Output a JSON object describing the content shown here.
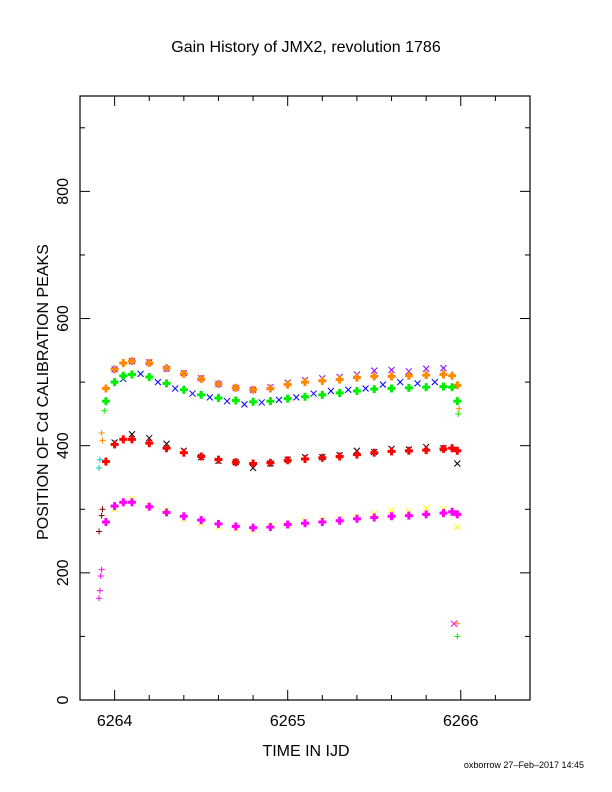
{
  "chart_data": {
    "type": "scatter",
    "title": "Gain History of JMX2, revolution 1786",
    "xlabel": "TIME IN IJD",
    "ylabel": "POSITION OF Cd CALIBRATION PEAKS",
    "xlim": [
      6263.8,
      6266.4
    ],
    "ylim": [
      0,
      950
    ],
    "x_ticks": [
      6264,
      6265,
      6266
    ],
    "x_tick_labels": [
      "6264",
      "6265",
      "6266"
    ],
    "y_ticks": [
      0,
      200,
      400,
      600,
      800
    ],
    "y_tick_labels": [
      "0",
      "200",
      "400",
      "600",
      "800"
    ],
    "grid": false,
    "footer": "oxborrow 27–Feb–2017 14:45",
    "series": [
      {
        "color": "#8800ff",
        "marker": "x",
        "role": "raw",
        "x": [
          6264.0,
          6264.1,
          6264.2,
          6264.3,
          6264.4,
          6264.5,
          6264.6,
          6264.7,
          6264.8,
          6264.9,
          6265.0,
          6265.1,
          6265.2,
          6265.3,
          6265.4,
          6265.5,
          6265.6,
          6265.7,
          6265.8,
          6265.9
        ],
        "y": [
          520,
          533,
          531,
          521,
          514,
          506,
          497,
          491,
          488,
          492,
          499,
          503,
          506,
          508,
          512,
          518,
          519,
          517,
          521,
          522
        ]
      },
      {
        "color": "#0000ff",
        "marker": "x",
        "role": "raw",
        "x": [
          6264.05,
          6264.15,
          6264.25,
          6264.35,
          6264.45,
          6264.55,
          6264.65,
          6264.75,
          6264.85,
          6264.95,
          6265.05,
          6265.15,
          6265.25,
          6265.35,
          6265.45,
          6265.55,
          6265.65,
          6265.75,
          6265.85
        ],
        "y": [
          505,
          513,
          500,
          490,
          482,
          476,
          470,
          465,
          468,
          472,
          476,
          482,
          486,
          488,
          490,
          496,
          500,
          498,
          500
        ]
      },
      {
        "color": "#ff8800",
        "marker": "+",
        "role": "fit",
        "x": [
          6263.95,
          6264.0,
          6264.05,
          6264.1,
          6264.2,
          6264.3,
          6264.4,
          6264.5,
          6264.6,
          6264.7,
          6264.8,
          6264.9,
          6265.0,
          6265.1,
          6265.2,
          6265.3,
          6265.4,
          6265.5,
          6265.6,
          6265.7,
          6265.8,
          6265.9,
          6265.95,
          6265.98
        ],
        "y": [
          490,
          520,
          530,
          533,
          530,
          522,
          513,
          505,
          497,
          491,
          488,
          490,
          496,
          500,
          502,
          504,
          507,
          509,
          509,
          510,
          511,
          512,
          510,
          495
        ]
      },
      {
        "color": "#00ee00",
        "marker": "+",
        "role": "fit",
        "x": [
          6263.95,
          6264.0,
          6264.05,
          6264.1,
          6264.2,
          6264.3,
          6264.4,
          6264.5,
          6264.6,
          6264.7,
          6264.8,
          6264.9,
          6265.0,
          6265.1,
          6265.2,
          6265.3,
          6265.4,
          6265.5,
          6265.6,
          6265.7,
          6265.8,
          6265.9,
          6265.95,
          6265.98
        ],
        "y": [
          470,
          500,
          510,
          512,
          508,
          498,
          488,
          480,
          475,
          471,
          469,
          470,
          474,
          477,
          480,
          483,
          486,
          489,
          490,
          491,
          492,
          493,
          492,
          470
        ]
      },
      {
        "color": "#000000",
        "marker": "x",
        "role": "raw",
        "x": [
          6264.0,
          6264.1,
          6264.2,
          6264.3,
          6264.4,
          6264.5,
          6264.6,
          6264.7,
          6264.8,
          6264.9,
          6265.0,
          6265.1,
          6265.2,
          6265.3,
          6265.4,
          6265.5,
          6265.6,
          6265.7,
          6265.8,
          6265.9,
          6265.98
        ],
        "y": [
          405,
          418,
          412,
          403,
          392,
          382,
          376,
          374,
          365,
          372,
          378,
          382,
          382,
          385,
          392,
          390,
          395,
          394,
          398,
          396,
          372
        ]
      },
      {
        "color": "#ff0000",
        "marker": "+",
        "role": "fit",
        "x": [
          6263.95,
          6264.0,
          6264.05,
          6264.1,
          6264.2,
          6264.3,
          6264.4,
          6264.5,
          6264.6,
          6264.7,
          6264.8,
          6264.9,
          6265.0,
          6265.1,
          6265.2,
          6265.3,
          6265.4,
          6265.5,
          6265.6,
          6265.7,
          6265.8,
          6265.9,
          6265.95,
          6265.98
        ],
        "y": [
          375,
          402,
          410,
          410,
          404,
          396,
          389,
          383,
          378,
          374,
          372,
          373,
          377,
          379,
          381,
          383,
          386,
          389,
          391,
          392,
          393,
          395,
          396,
          392
        ]
      },
      {
        "color": "#ffff00",
        "marker": "x",
        "role": "raw",
        "x": [
          6264.0,
          6264.1,
          6264.2,
          6264.3,
          6264.4,
          6264.5,
          6264.6,
          6264.7,
          6264.8,
          6264.9,
          6265.0,
          6265.1,
          6265.2,
          6265.3,
          6265.4,
          6265.5,
          6265.6,
          6265.7,
          6265.8,
          6265.9,
          6265.98
        ],
        "y": [
          300,
          316,
          305,
          296,
          285,
          278,
          272,
          270,
          268,
          274,
          275,
          282,
          283,
          285,
          288,
          293,
          298,
          296,
          302,
          300,
          272
        ]
      },
      {
        "color": "#ff00ff",
        "marker": "+",
        "role": "fit",
        "x": [
          6263.95,
          6264.0,
          6264.05,
          6264.1,
          6264.2,
          6264.3,
          6264.4,
          6264.5,
          6264.6,
          6264.7,
          6264.8,
          6264.9,
          6265.0,
          6265.1,
          6265.2,
          6265.3,
          6265.4,
          6265.5,
          6265.6,
          6265.7,
          6265.8,
          6265.9,
          6265.95,
          6265.98
        ],
        "y": [
          280,
          305,
          311,
          311,
          304,
          295,
          289,
          283,
          277,
          273,
          271,
          272,
          276,
          278,
          280,
          282,
          285,
          287,
          289,
          290,
          292,
          294,
          296,
          292
        ]
      }
    ],
    "extra_points": [
      {
        "color": "#ff00ff",
        "marker": "+",
        "x": 6263.91,
        "y": 160
      },
      {
        "color": "#ff00ff",
        "marker": "+",
        "x": 6263.915,
        "y": 172
      },
      {
        "color": "#ff00ff",
        "marker": "+",
        "x": 6263.92,
        "y": 195
      },
      {
        "color": "#ff00ff",
        "marker": "+",
        "x": 6263.925,
        "y": 205
      },
      {
        "color": "#8b0000",
        "marker": "+",
        "x": 6263.91,
        "y": 265
      },
      {
        "color": "#8b0000",
        "marker": "+",
        "x": 6263.925,
        "y": 290
      },
      {
        "color": "#8b0000",
        "marker": "+",
        "x": 6263.93,
        "y": 300
      },
      {
        "color": "#00cccc",
        "marker": "+",
        "x": 6263.91,
        "y": 365
      },
      {
        "color": "#00cccc",
        "marker": "+",
        "x": 6263.915,
        "y": 378
      },
      {
        "color": "#ff8800",
        "marker": "+",
        "x": 6263.925,
        "y": 420
      },
      {
        "color": "#ff8800",
        "marker": "+",
        "x": 6263.93,
        "y": 408
      },
      {
        "color": "#00ee00",
        "marker": "+",
        "x": 6263.94,
        "y": 455
      },
      {
        "color": "#ff00ff",
        "marker": "x",
        "x": 6265.96,
        "y": 120
      },
      {
        "color": "#ff8800",
        "marker": "+",
        "x": 6265.98,
        "y": 120
      },
      {
        "color": "#00ee00",
        "marker": "+",
        "x": 6265.98,
        "y": 100
      },
      {
        "color": "#ff8800",
        "marker": "+",
        "x": 6265.99,
        "y": 458
      },
      {
        "color": "#00ee00",
        "marker": "+",
        "x": 6265.985,
        "y": 450
      }
    ]
  }
}
